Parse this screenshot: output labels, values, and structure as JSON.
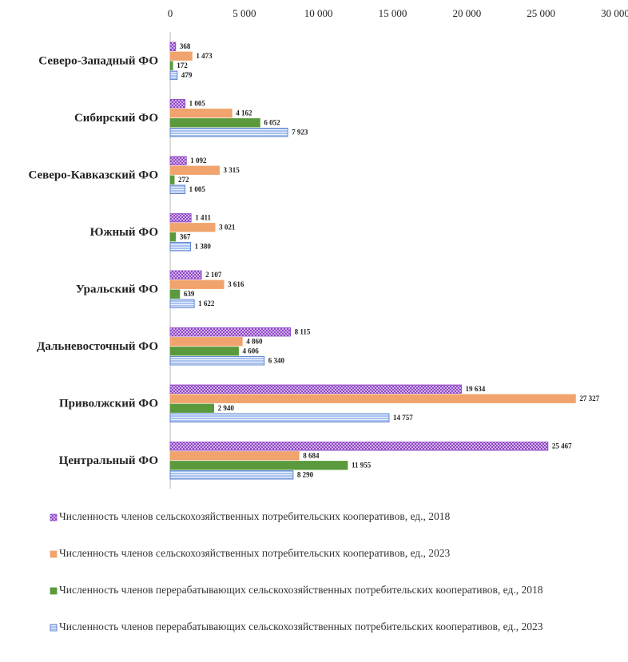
{
  "chart_data": {
    "type": "barh",
    "categories": [
      "Северо-Западный ФО",
      "Сибирский ФО",
      "Северо-Кавказский ФО",
      "Южный ФО",
      "Уральский ФО",
      "Дальневосточный ФО",
      "Приволжский ФО",
      "Центральный ФО"
    ],
    "series": [
      {
        "name": "Численность членов сельскохозяйственных потребительских кооперативов, ед., 2018",
        "color": "#8e44c8",
        "pattern": "crosshatch",
        "values": [
          368,
          1005,
          1092,
          1411,
          2107,
          8115,
          19634,
          25467
        ],
        "value_labels": [
          "368",
          "1 005",
          "1 092",
          "1 411",
          "2 107",
          "8 115",
          "19 634",
          "25 467"
        ]
      },
      {
        "name": "Численность членов сельскохозяйственных потребительских кооперативов, ед., 2023",
        "color": "#f0a36c",
        "pattern": "none",
        "values": [
          1473,
          4162,
          3315,
          3021,
          3616,
          4860,
          27327,
          8684
        ],
        "value_labels": [
          "1 473",
          "4 162",
          "3 315",
          "3 021",
          "3 616",
          "4 860",
          "27 327",
          "8 684"
        ]
      },
      {
        "name": "Численность членов перерабатывающих сельскохозяйственных потребительских кооперативов, ед., 2018",
        "color": "#5b9a3c",
        "pattern": "none",
        "values": [
          172,
          6052,
          272,
          367,
          639,
          4606,
          2940,
          11955
        ],
        "value_labels": [
          "172",
          "6 052",
          "272",
          "367",
          "639",
          "4 606",
          "2 940",
          "11 955"
        ]
      },
      {
        "name": "Численность членов перерабатывающих сельскохозяйственных потребительских кооперативов, ед., 2023",
        "color": "#4472c4",
        "pattern": "lines",
        "values": [
          479,
          7923,
          1005,
          1380,
          1622,
          6340,
          14757,
          8290
        ],
        "value_labels": [
          "479",
          "7 923",
          "1 005",
          "1 380",
          "1 622",
          "6 340",
          "14 757",
          "8 290"
        ]
      }
    ],
    "xlim": [
      0,
      30000
    ],
    "xticks": [
      0,
      {
        "value": 5000,
        "label": "5 000"
      },
      {
        "value": 10000,
        "label": "10 000"
      },
      {
        "value": 15000,
        "label": "15 000"
      },
      {
        "value": 20000,
        "label": "20 000"
      },
      {
        "value": 25000,
        "label": "25 000"
      },
      {
        "value": 30000,
        "label": "30 000"
      }
    ],
    "grid": false
  }
}
